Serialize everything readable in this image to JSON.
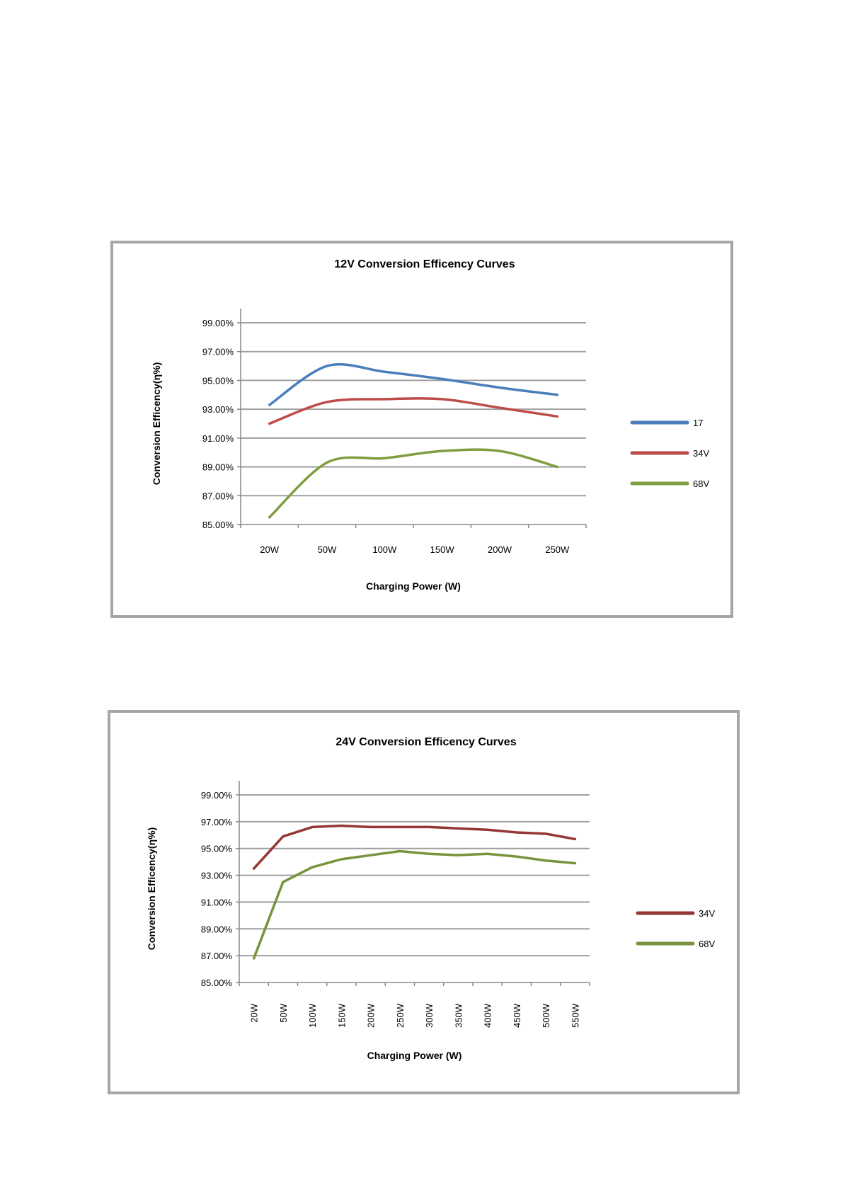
{
  "chart_data": [
    {
      "type": "line",
      "title": "12V  Conversion Efficency Curves",
      "xlabel": "Charging  Power  (W)",
      "ylabel": "Conversion Efficency(η%)",
      "categories": [
        "20W",
        "50W",
        "100W",
        "150W",
        "200W",
        "250W"
      ],
      "y_ticks": [
        "85.00%",
        "87.00%",
        "89.00%",
        "91.00%",
        "93.00%",
        "95.00%",
        "97.00%",
        "99.00%"
      ],
      "ylim": [
        85,
        99
      ],
      "grid": true,
      "legend": "right",
      "series": [
        {
          "name": "17",
          "color": "#4a7ebb",
          "values": [
            93.3,
            96.0,
            95.6,
            95.1,
            94.5,
            94.0
          ]
        },
        {
          "name": "34V",
          "color": "#be4b48",
          "values": [
            92.0,
            93.5,
            93.7,
            93.7,
            93.1,
            92.5
          ]
        },
        {
          "name": "68V",
          "color": "#7f9e3f",
          "values": [
            85.5,
            89.3,
            89.6,
            90.1,
            90.1,
            89.0
          ]
        }
      ]
    },
    {
      "type": "line",
      "title": "24V  Conversion Efficency Curves",
      "xlabel": "Charging  Power  (W)",
      "ylabel": "Conversion Efficency(η%)",
      "categories": [
        "20W",
        "50W",
        "100W",
        "150W",
        "200W",
        "250W",
        "300W",
        "350W",
        "400W",
        "450W",
        "500W",
        "550W"
      ],
      "y_ticks": [
        "85.00%",
        "87.00%",
        "89.00%",
        "91.00%",
        "93.00%",
        "95.00%",
        "97.00%",
        "99.00%"
      ],
      "ylim": [
        85,
        99
      ],
      "grid": true,
      "legend": "right",
      "series": [
        {
          "name": "34V",
          "color": "#953735",
          "values": [
            93.5,
            95.9,
            96.6,
            96.7,
            96.6,
            96.6,
            96.6,
            96.5,
            96.4,
            96.2,
            96.1,
            95.7
          ]
        },
        {
          "name": "68V",
          "color": "#77933c",
          "values": [
            86.8,
            92.5,
            93.6,
            94.2,
            94.5,
            94.8,
            94.6,
            94.5,
            94.6,
            94.4,
            94.1,
            93.9
          ]
        }
      ]
    }
  ]
}
